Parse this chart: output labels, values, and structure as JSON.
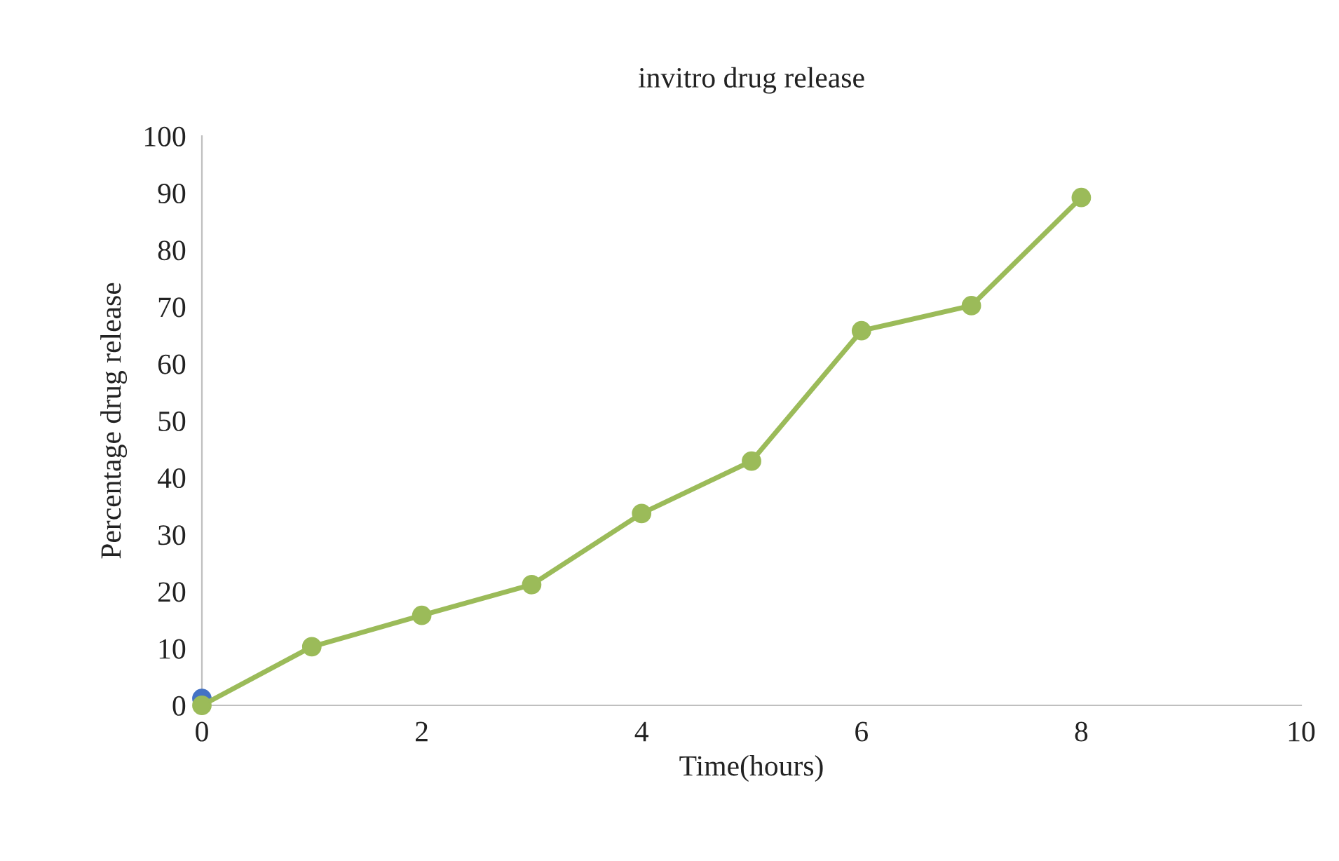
{
  "chart_data": {
    "type": "line",
    "title": "invitro drug release",
    "xlabel": "Time(hours)",
    "ylabel": "Percentage drug release",
    "xlim": [
      0,
      10
    ],
    "xticks": [
      0,
      2,
      4,
      6,
      8,
      10
    ],
    "ylim": [
      0,
      100
    ],
    "yticks": [
      0,
      10,
      20,
      30,
      40,
      50,
      60,
      70,
      80,
      90,
      100
    ],
    "grid": false,
    "marker": "circle",
    "line_style": "solid",
    "series": [
      {
        "type": "scatter",
        "color": "#4472c4",
        "x": [
          0
        ],
        "values": [
          1.2
        ]
      },
      {
        "color": "#9bbb59",
        "x": [
          0,
          1,
          2,
          3,
          4,
          5,
          6,
          7,
          8
        ],
        "values": [
          0,
          10.3,
          15.8,
          21.2,
          33.7,
          42.9,
          65.8,
          70.2,
          89.2
        ]
      }
    ]
  }
}
